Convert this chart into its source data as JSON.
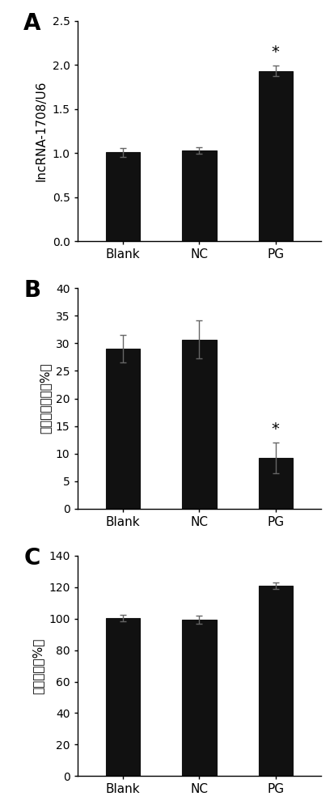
{
  "panel_labels": [
    "A",
    "B",
    "C"
  ],
  "categories": [
    "Blank",
    "NC",
    "PG"
  ],
  "bar_color": "#111111",
  "error_color": "#666666",
  "panel_A": {
    "values": [
      1.01,
      1.03,
      1.93
    ],
    "errors": [
      0.05,
      0.04,
      0.06
    ],
    "ylabel": "lncRNA-1708/U6",
    "ylim": [
      0,
      2.5
    ],
    "yticks": [
      0,
      0.5,
      1.0,
      1.5,
      2.0,
      2.5
    ],
    "sig_idx": 2
  },
  "panel_B": {
    "values": [
      29.0,
      30.7,
      9.2
    ],
    "errors": [
      2.5,
      3.5,
      2.8
    ],
    "ylabel": "衰老细胞比例（%）",
    "ylim": [
      0,
      40
    ],
    "yticks": [
      0,
      5,
      10,
      15,
      20,
      25,
      30,
      35,
      40
    ],
    "sig_idx": 2
  },
  "panel_C": {
    "values": [
      100.5,
      99.5,
      121.0
    ],
    "errors": [
      2.0,
      2.5,
      2.0
    ],
    "ylabel": "增殖活性（%）",
    "ylim": [
      0,
      140
    ],
    "yticks": [
      0,
      20,
      40,
      60,
      80,
      100,
      120,
      140
    ],
    "sig_idx": null
  }
}
